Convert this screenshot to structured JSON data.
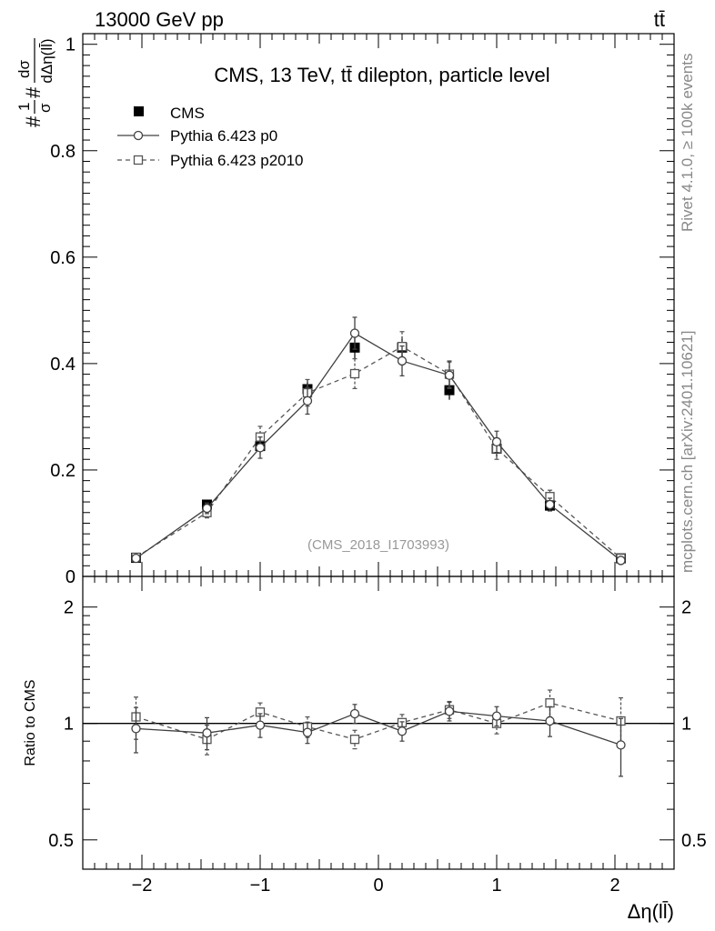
{
  "header": {
    "energy_label": "13000 GeV pp",
    "process_label": "tt̄"
  },
  "side": {
    "rivet_label": "Rivet 4.1.0, ≥ 100k events",
    "source_label": "mcplots.cern.ch [arXiv:2401.10621]"
  },
  "colors": {
    "data": "#000000",
    "p0": "#404040",
    "p2010": "#555555",
    "analysis_id": "#999999"
  },
  "chart_data": [
    {
      "type": "scatter",
      "title": "CMS, 13 TeV, tt̄ dilepton, particle level",
      "analysis_id": "(CMS_2018_I1703993)",
      "xlabel": "Δη(ll̄)",
      "ylabel": "#1/σ# dσ/dΔη(ll̄)",
      "ylabel_prefix": "#",
      "ylabel_frac_num": "1",
      "ylabel_frac_den": "σ",
      "ylabel_suffix": "#",
      "ylabel_num": "dσ",
      "ylabel_den": "dΔη(ll̄)",
      "xlim": [
        -2.5,
        2.5
      ],
      "ylim": [
        0,
        1.02
      ],
      "x_ticks": [
        -2,
        -1,
        0,
        1,
        2
      ],
      "x_tick_labels": [
        "−2",
        "−1",
        "0",
        "1",
        "2"
      ],
      "y_ticks": [
        0,
        0.2,
        0.4,
        0.6,
        0.8,
        1
      ],
      "y_tick_labels": [
        "0",
        "0.2",
        "0.4",
        "0.6",
        "0.8",
        "1"
      ],
      "legend_position": "top-left",
      "x": [
        -2.05,
        -1.45,
        -1.0,
        -0.6,
        -0.2,
        0.2,
        0.6,
        1.0,
        1.45,
        2.05
      ],
      "series": [
        {
          "name": "CMS",
          "marker": "filled-square",
          "values": [
            0.035,
            0.135,
            0.245,
            0.352,
            0.43,
            0.43,
            0.35,
            0.24,
            0.133,
            0.034
          ],
          "errors": [
            0.003,
            0.008,
            0.015,
            0.018,
            0.02,
            0.02,
            0.018,
            0.015,
            0.008,
            0.003
          ]
        },
        {
          "name": "Pythia 6.423 p0",
          "marker": "open-circle",
          "line": "solid",
          "values": [
            0.034,
            0.128,
            0.242,
            0.33,
            0.457,
            0.405,
            0.378,
            0.253,
            0.135,
            0.03
          ],
          "errors": [
            0.004,
            0.01,
            0.02,
            0.025,
            0.03,
            0.028,
            0.025,
            0.02,
            0.012,
            0.004
          ]
        },
        {
          "name": "Pythia 6.423 p2010",
          "marker": "open-square",
          "line": "dashed",
          "values": [
            0.036,
            0.12,
            0.262,
            0.345,
            0.381,
            0.432,
            0.38,
            0.24,
            0.15,
            0.034
          ],
          "errors": [
            0.004,
            0.01,
            0.02,
            0.025,
            0.028,
            0.028,
            0.025,
            0.02,
            0.012,
            0.004
          ]
        }
      ]
    },
    {
      "type": "scatter",
      "title": "",
      "xlabel": "Δη(ll̄)",
      "ylabel": "Ratio to CMS",
      "yscale": "log",
      "xlim": [
        -2.5,
        2.5
      ],
      "ylim": [
        0.42,
        2.4
      ],
      "y_ticks": [
        0.5,
        1,
        2
      ],
      "y_tick_labels": [
        "0.5",
        "1",
        "2"
      ],
      "reference_line": 1,
      "x": [
        -2.05,
        -1.45,
        -1.0,
        -0.6,
        -0.2,
        0.2,
        0.6,
        1.0,
        1.45,
        2.05
      ],
      "series": [
        {
          "name": "Pythia 6.423 p0",
          "values": [
            0.97,
            0.945,
            0.99,
            0.948,
            1.06,
            0.955,
            1.075,
            1.045,
            1.015,
            0.88
          ],
          "errors": [
            0.13,
            0.09,
            0.07,
            0.06,
            0.06,
            0.055,
            0.06,
            0.06,
            0.09,
            0.15
          ]
        },
        {
          "name": "Pythia 6.423 p2010",
          "values": [
            1.04,
            0.91,
            1.07,
            0.98,
            0.91,
            1.005,
            1.085,
            1.0,
            1.13,
            1.015
          ],
          "errors": [
            0.13,
            0.08,
            0.06,
            0.06,
            0.05,
            0.05,
            0.055,
            0.06,
            0.09,
            0.15
          ]
        }
      ]
    }
  ]
}
